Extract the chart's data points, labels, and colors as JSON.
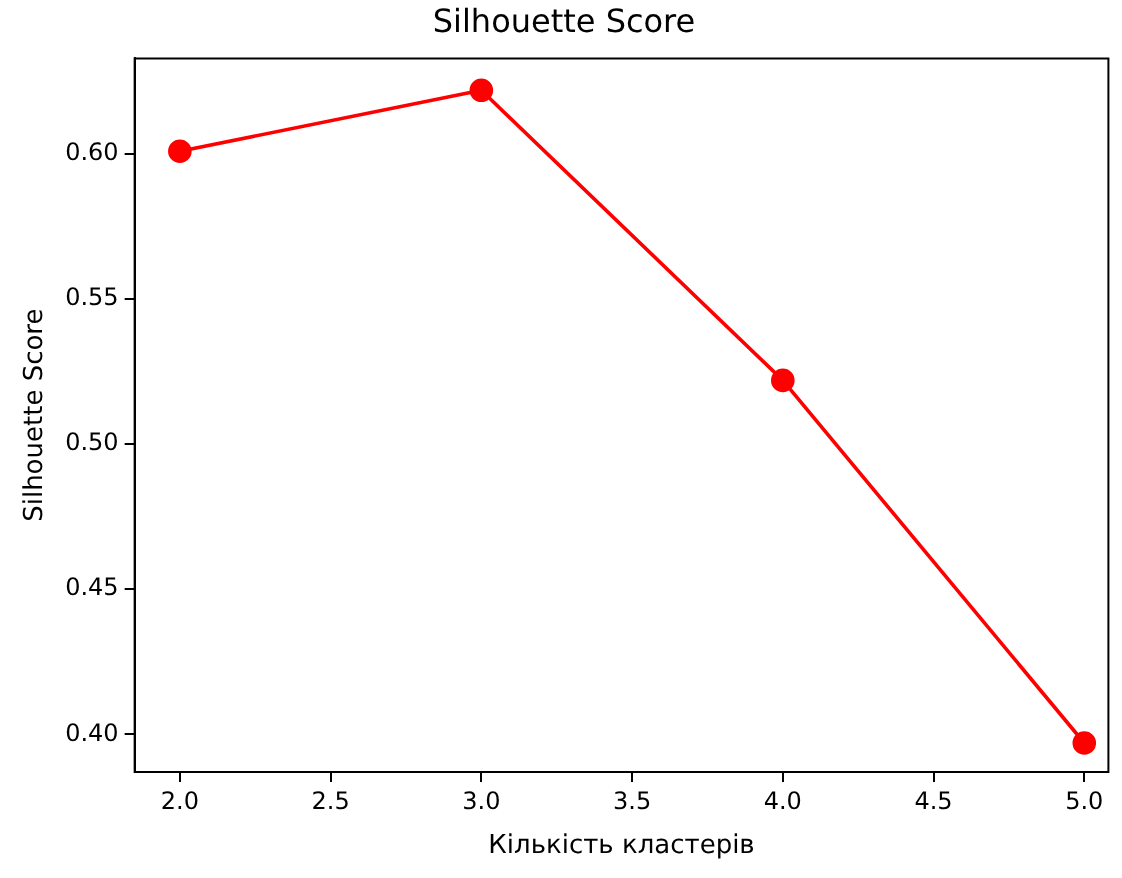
{
  "chart_data": {
    "type": "line",
    "title": "Silhouette Score",
    "xlabel": "Кількість кластерів",
    "ylabel": "Silhouette Score",
    "x": [
      2,
      3,
      4,
      5
    ],
    "series": [
      {
        "color": "#ff0000",
        "values": [
          0.601,
          0.622,
          0.522,
          0.397
        ]
      }
    ],
    "xlim": [
      1.85,
      5.08
    ],
    "xticks": [
      {
        "value": 2,
        "label": "2.0"
      },
      {
        "value": 2.5,
        "label": "2.5"
      },
      {
        "value": 3,
        "label": "3.0"
      },
      {
        "value": 3.5,
        "label": "3.5"
      },
      {
        "value": 4,
        "label": "4.0"
      },
      {
        "value": 4.5,
        "label": "4.5"
      },
      {
        "value": 5,
        "label": "5.0"
      }
    ],
    "ylim": [
      0.387,
      0.633
    ],
    "yticks": [
      {
        "value": 0.4,
        "label": "0.40"
      },
      {
        "value": 0.45,
        "label": "0.45"
      },
      {
        "value": 0.5,
        "label": "0.50"
      },
      {
        "value": 0.55,
        "label": "0.55"
      },
      {
        "value": 0.6,
        "label": "0.60"
      }
    ],
    "grid": false,
    "legend": false,
    "marker": "circle",
    "line_style": "solid"
  }
}
